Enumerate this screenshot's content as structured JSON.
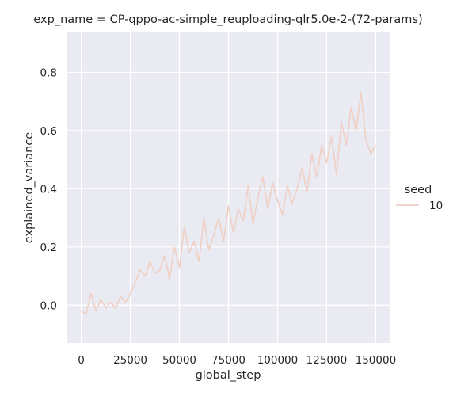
{
  "chart_data": {
    "type": "line",
    "title": "exp_name = CP-qppo-ac-simple_reuploading-qlr5.0e-2-(72-params)",
    "xlabel": "global_step",
    "ylabel": "explained_variance",
    "xlim": [
      -7500,
      157500
    ],
    "ylim": [
      -0.13,
      0.94
    ],
    "xticks": [
      0,
      25000,
      50000,
      75000,
      100000,
      125000,
      150000
    ],
    "yticks": [
      0.0,
      0.2,
      0.4,
      0.6,
      0.8
    ],
    "xtick_labels": [
      "0",
      "25000",
      "50000",
      "75000",
      "100000",
      "125000",
      "150000"
    ],
    "ytick_labels": [
      "0.0",
      "0.2",
      "0.4",
      "0.6",
      "0.8"
    ],
    "grid": true,
    "legend": {
      "title": "seed",
      "placement": "right",
      "entries": [
        "10"
      ]
    },
    "series": [
      {
        "name": "10",
        "color": "#f0cfc4",
        "x": [
          0,
          2500,
          5000,
          7500,
          10000,
          12500,
          15000,
          17500,
          20000,
          22500,
          25000,
          27500,
          30000,
          32500,
          35000,
          37500,
          40000,
          42500,
          45000,
          47500,
          50000,
          52500,
          55000,
          57500,
          60000,
          62500,
          65000,
          67500,
          70000,
          72500,
          75000,
          77500,
          80000,
          82500,
          85000,
          87500,
          90000,
          92500,
          95000,
          97500,
          100000,
          102500,
          105000,
          107500,
          110000,
          112500,
          115000,
          117500,
          120000,
          122500,
          125000,
          127500,
          130000,
          132500,
          135000,
          137500,
          140000,
          142500,
          145000,
          147500,
          150000
        ],
        "y": [
          -0.02,
          -0.03,
          0.04,
          -0.02,
          0.02,
          -0.01,
          0.01,
          -0.01,
          0.03,
          0.01,
          0.04,
          0.08,
          0.12,
          0.1,
          0.15,
          0.11,
          0.12,
          0.17,
          0.09,
          0.2,
          0.13,
          0.27,
          0.18,
          0.22,
          0.15,
          0.3,
          0.19,
          0.24,
          0.3,
          0.22,
          0.34,
          0.25,
          0.33,
          0.29,
          0.41,
          0.28,
          0.37,
          0.44,
          0.33,
          0.42,
          0.36,
          0.31,
          0.41,
          0.35,
          0.4,
          0.47,
          0.39,
          0.52,
          0.44,
          0.55,
          0.49,
          0.58,
          0.45,
          0.63,
          0.55,
          0.68,
          0.6,
          0.73,
          0.57,
          0.52,
          0.55
        ]
      }
    ]
  }
}
